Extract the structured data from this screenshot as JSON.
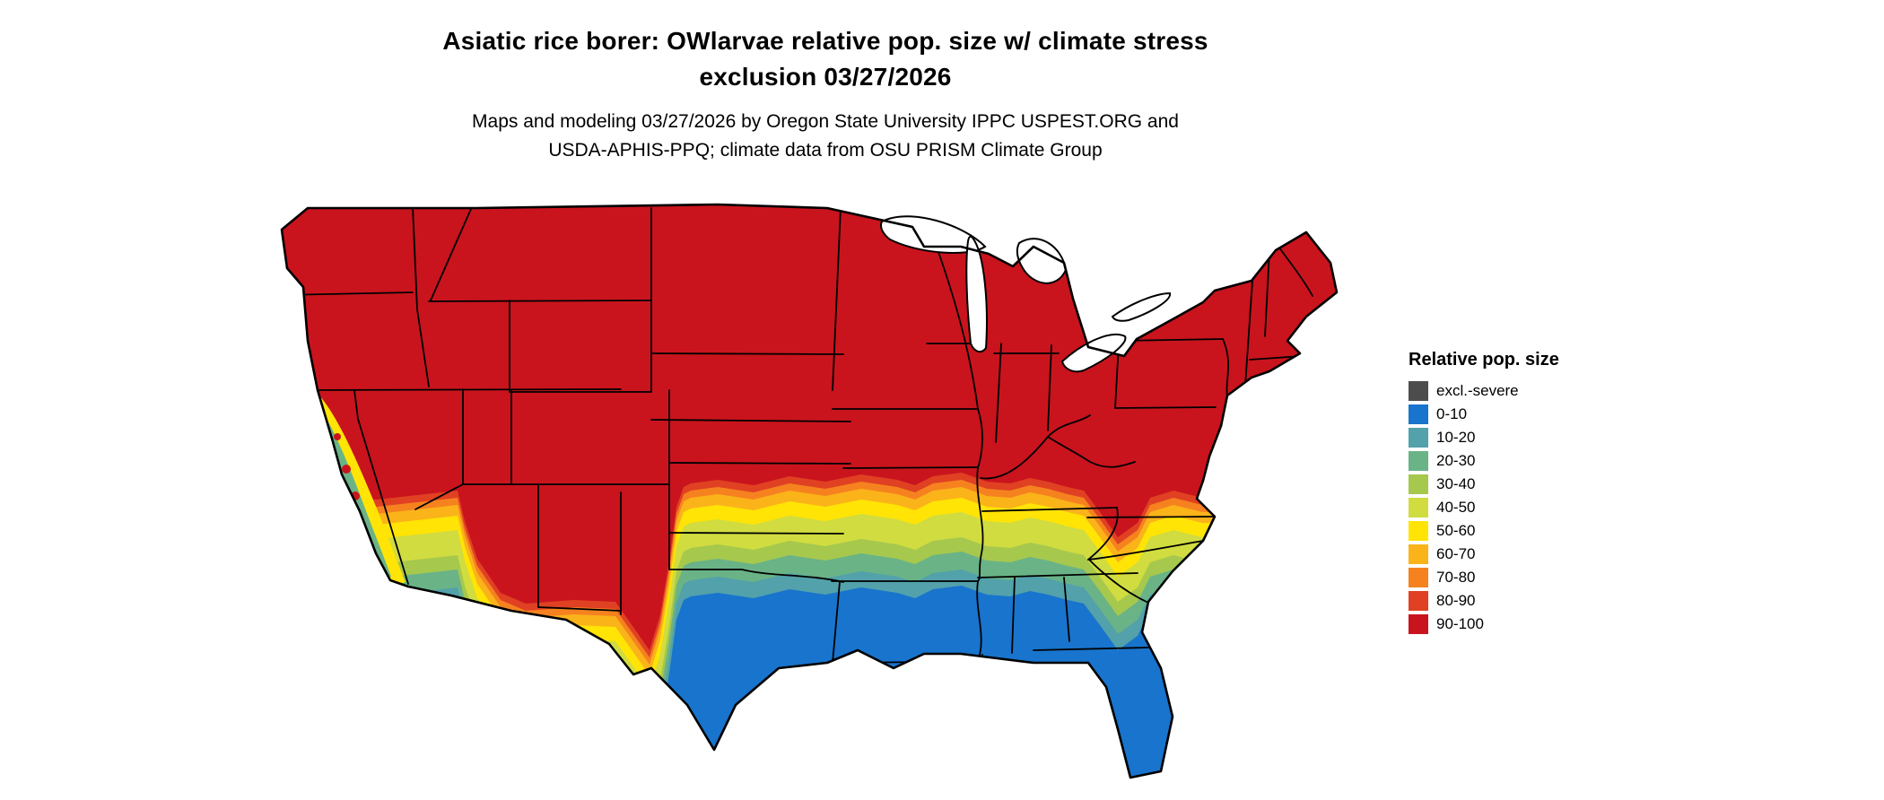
{
  "title": {
    "line1": "Asiatic rice borer: OWlarvae relative pop. size w/ climate stress",
    "line2": "exclusion 03/27/2026"
  },
  "subtitle": {
    "line1": "Maps and modeling 03/27/2026 by Oregon State University IPPC USPEST.ORG and",
    "line2": "USDA-APHIS-PPQ; climate data from OSU PRISM Climate Group"
  },
  "legend": {
    "title": "Relative pop. size",
    "items": [
      {
        "label": "excl.-severe",
        "color": "#4d4d4d"
      },
      {
        "label": "0-10",
        "color": "#1874cd"
      },
      {
        "label": "10-20",
        "color": "#52a1ab"
      },
      {
        "label": "20-30",
        "color": "#6ab387"
      },
      {
        "label": "30-40",
        "color": "#a6c84d"
      },
      {
        "label": "40-50",
        "color": "#d0dc40"
      },
      {
        "label": "50-60",
        "color": "#ffe405"
      },
      {
        "label": "60-70",
        "color": "#fbb31a"
      },
      {
        "label": "70-80",
        "color": "#f5821f"
      },
      {
        "label": "80-90",
        "color": "#e04122"
      },
      {
        "label": "90-100",
        "color": "#c9141d"
      }
    ]
  },
  "map": {
    "type": "choropleth-raster",
    "region": "Contiguous United States",
    "border_color": "#000000",
    "background": "#ffffff",
    "summary": "High relative population size (90-100, red) across the northern and central US; bands of 80-90 through 30-40 form an orange-to-green transition across the mid-south; low values (0-10, blue) over Texas, the Gulf Coast and Florida; mixed low-to-mid classes along the California coast."
  }
}
